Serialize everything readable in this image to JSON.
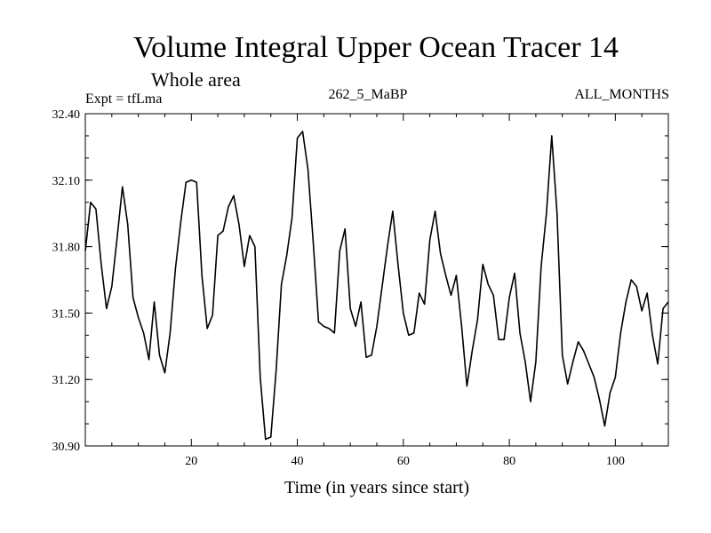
{
  "chart_data": {
    "type": "line",
    "title": "Volume Integral Upper Ocean Tracer 14",
    "subtitle": "Whole area",
    "expt_label": "Expt = tfLma",
    "run_label": "262_5_MaBP",
    "period_label": "ALL_MONTHS",
    "xlabel": "Time (in years since start)",
    "ylabel": "",
    "xlim": [
      0,
      110
    ],
    "ylim": [
      30.9,
      32.4
    ],
    "x_ticks": [
      20,
      40,
      60,
      80,
      100
    ],
    "y_ticks": [
      "30.90",
      "31.20",
      "31.50",
      "31.80",
      "32.10",
      "32.40"
    ],
    "series": [
      {
        "name": "Tracer 14",
        "x": [
          0,
          1,
          2,
          3,
          4,
          5,
          6,
          7,
          8,
          9,
          10,
          11,
          12,
          13,
          14,
          15,
          16,
          17,
          18,
          19,
          20,
          21,
          22,
          23,
          24,
          25,
          26,
          27,
          28,
          29,
          30,
          31,
          32,
          33,
          34,
          35,
          36,
          37,
          38,
          39,
          40,
          41,
          42,
          43,
          44,
          45,
          46,
          47,
          48,
          49,
          50,
          51,
          52,
          53,
          54,
          55,
          56,
          57,
          58,
          59,
          60,
          61,
          62,
          63,
          64,
          65,
          66,
          67,
          68,
          69,
          70,
          71,
          72,
          73,
          74,
          75,
          76,
          77,
          78,
          79,
          80,
          81,
          82,
          83,
          84,
          85,
          86,
          87,
          88,
          89,
          90,
          91,
          92,
          93,
          94,
          95,
          96,
          97,
          98,
          99,
          100,
          101,
          102,
          103,
          104,
          105,
          106,
          107,
          108,
          109,
          110
        ],
        "y": [
          31.78,
          32.0,
          31.97,
          31.72,
          31.52,
          31.62,
          31.84,
          32.07,
          31.9,
          31.57,
          31.48,
          31.41,
          31.29,
          31.55,
          31.31,
          31.23,
          31.41,
          31.7,
          31.91,
          32.09,
          32.1,
          32.09,
          31.67,
          31.43,
          31.49,
          31.85,
          31.87,
          31.98,
          32.03,
          31.9,
          31.71,
          31.85,
          31.8,
          31.21,
          30.93,
          30.94,
          31.24,
          31.63,
          31.76,
          31.93,
          32.29,
          32.32,
          32.15,
          31.82,
          31.46,
          31.44,
          31.43,
          31.41,
          31.78,
          31.88,
          31.52,
          31.44,
          31.55,
          31.3,
          31.31,
          31.44,
          31.62,
          31.8,
          31.96,
          31.72,
          31.5,
          31.4,
          31.41,
          31.59,
          31.54,
          31.83,
          31.96,
          31.77,
          31.67,
          31.58,
          31.67,
          31.44,
          31.17,
          31.33,
          31.47,
          31.72,
          31.63,
          31.58,
          31.38,
          31.38,
          31.57,
          31.68,
          31.41,
          31.28,
          31.1,
          31.28,
          31.71,
          31.95,
          32.3,
          31.95,
          31.31,
          31.18,
          31.28,
          31.37,
          31.33,
          31.27,
          31.21,
          31.11,
          30.99,
          31.14,
          31.21,
          31.41,
          31.55,
          31.65,
          31.62,
          31.51,
          31.59,
          31.4,
          31.27,
          31.52,
          31.55
        ]
      }
    ]
  }
}
